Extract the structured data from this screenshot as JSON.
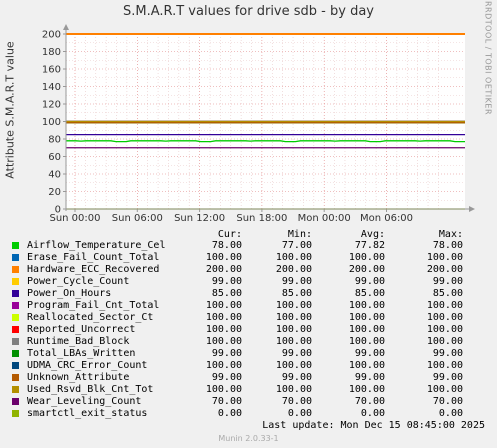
{
  "chart_data": {
    "type": "line",
    "title": "S.M.A.R.T values for drive sdb - by day",
    "ylabel": "Attribute S.M.A.R.T value",
    "ylim": [
      0,
      200
    ],
    "yticks": [
      "0",
      "20",
      "40",
      "60",
      "80",
      "100",
      "120",
      "140",
      "160",
      "180",
      "200"
    ],
    "xticks": [
      "Sun 00:00",
      "Sun 06:00",
      "Sun 12:00",
      "Sun 18:00",
      "Mon 00:00",
      "Mon 06:00"
    ],
    "grid": true,
    "columns": {
      "cur": "Cur:",
      "min": "Min:",
      "avg": "Avg:",
      "max": "Max:"
    },
    "series": [
      {
        "name": "Airflow_Temperature_Cel",
        "color": "#00cc00",
        "cur": "78.00",
        "min": "77.00",
        "avg": "77.82",
        "max": "78.00",
        "value": 77.8
      },
      {
        "name": "Erase_Fail_Count_Total",
        "color": "#0066b3",
        "cur": "100.00",
        "min": "100.00",
        "avg": "100.00",
        "max": "100.00",
        "value": 100
      },
      {
        "name": "Hardware_ECC_Recovered",
        "color": "#ff8000",
        "cur": "200.00",
        "min": "200.00",
        "avg": "200.00",
        "max": "200.00",
        "value": 200
      },
      {
        "name": "Power_Cycle_Count",
        "color": "#ffcc00",
        "cur": "99.00",
        "min": "99.00",
        "avg": "99.00",
        "max": "99.00",
        "value": 99
      },
      {
        "name": "Power_On_Hours",
        "color": "#330099",
        "cur": "85.00",
        "min": "85.00",
        "avg": "85.00",
        "max": "85.00",
        "value": 85
      },
      {
        "name": "Program_Fail_Cnt_Total",
        "color": "#990099",
        "cur": "100.00",
        "min": "100.00",
        "avg": "100.00",
        "max": "100.00",
        "value": 100
      },
      {
        "name": "Reallocated_Sector_Ct",
        "color": "#ccff00",
        "cur": "100.00",
        "min": "100.00",
        "avg": "100.00",
        "max": "100.00",
        "value": 100
      },
      {
        "name": "Reported_Uncorrect",
        "color": "#ff0000",
        "cur": "100.00",
        "min": "100.00",
        "avg": "100.00",
        "max": "100.00",
        "value": 100
      },
      {
        "name": "Runtime_Bad_Block",
        "color": "#808080",
        "cur": "100.00",
        "min": "100.00",
        "avg": "100.00",
        "max": "100.00",
        "value": 100
      },
      {
        "name": "Total_LBAs_Written",
        "color": "#008f00",
        "cur": "99.00",
        "min": "99.00",
        "avg": "99.00",
        "max": "99.00",
        "value": 99
      },
      {
        "name": "UDMA_CRC_Error_Count",
        "color": "#00487d",
        "cur": "100.00",
        "min": "100.00",
        "avg": "100.00",
        "max": "100.00",
        "value": 100
      },
      {
        "name": "Unknown_Attribute",
        "color": "#b35a00",
        "cur": "99.00",
        "min": "99.00",
        "avg": "99.00",
        "max": "99.00",
        "value": 99
      },
      {
        "name": "Used_Rsvd_Blk_Cnt_Tot",
        "color": "#b38f00",
        "cur": "100.00",
        "min": "100.00",
        "avg": "100.00",
        "max": "100.00",
        "value": 100
      },
      {
        "name": "Wear_Leveling_Count",
        "color": "#6b006b",
        "cur": "70.00",
        "min": "70.00",
        "avg": "70.00",
        "max": "70.00",
        "value": 70
      },
      {
        "name": "smartctl_exit_status",
        "color": "#8fb300",
        "cur": "0.00",
        "min": "0.00",
        "avg": "0.00",
        "max": "0.00",
        "value": 0
      }
    ]
  },
  "watermark": "RRDTOOL / TOBI OETIKER",
  "last_update": "Last update:  Mon Dec 15 08:45:00 2025",
  "footer": "Munin 2.0.33-1"
}
